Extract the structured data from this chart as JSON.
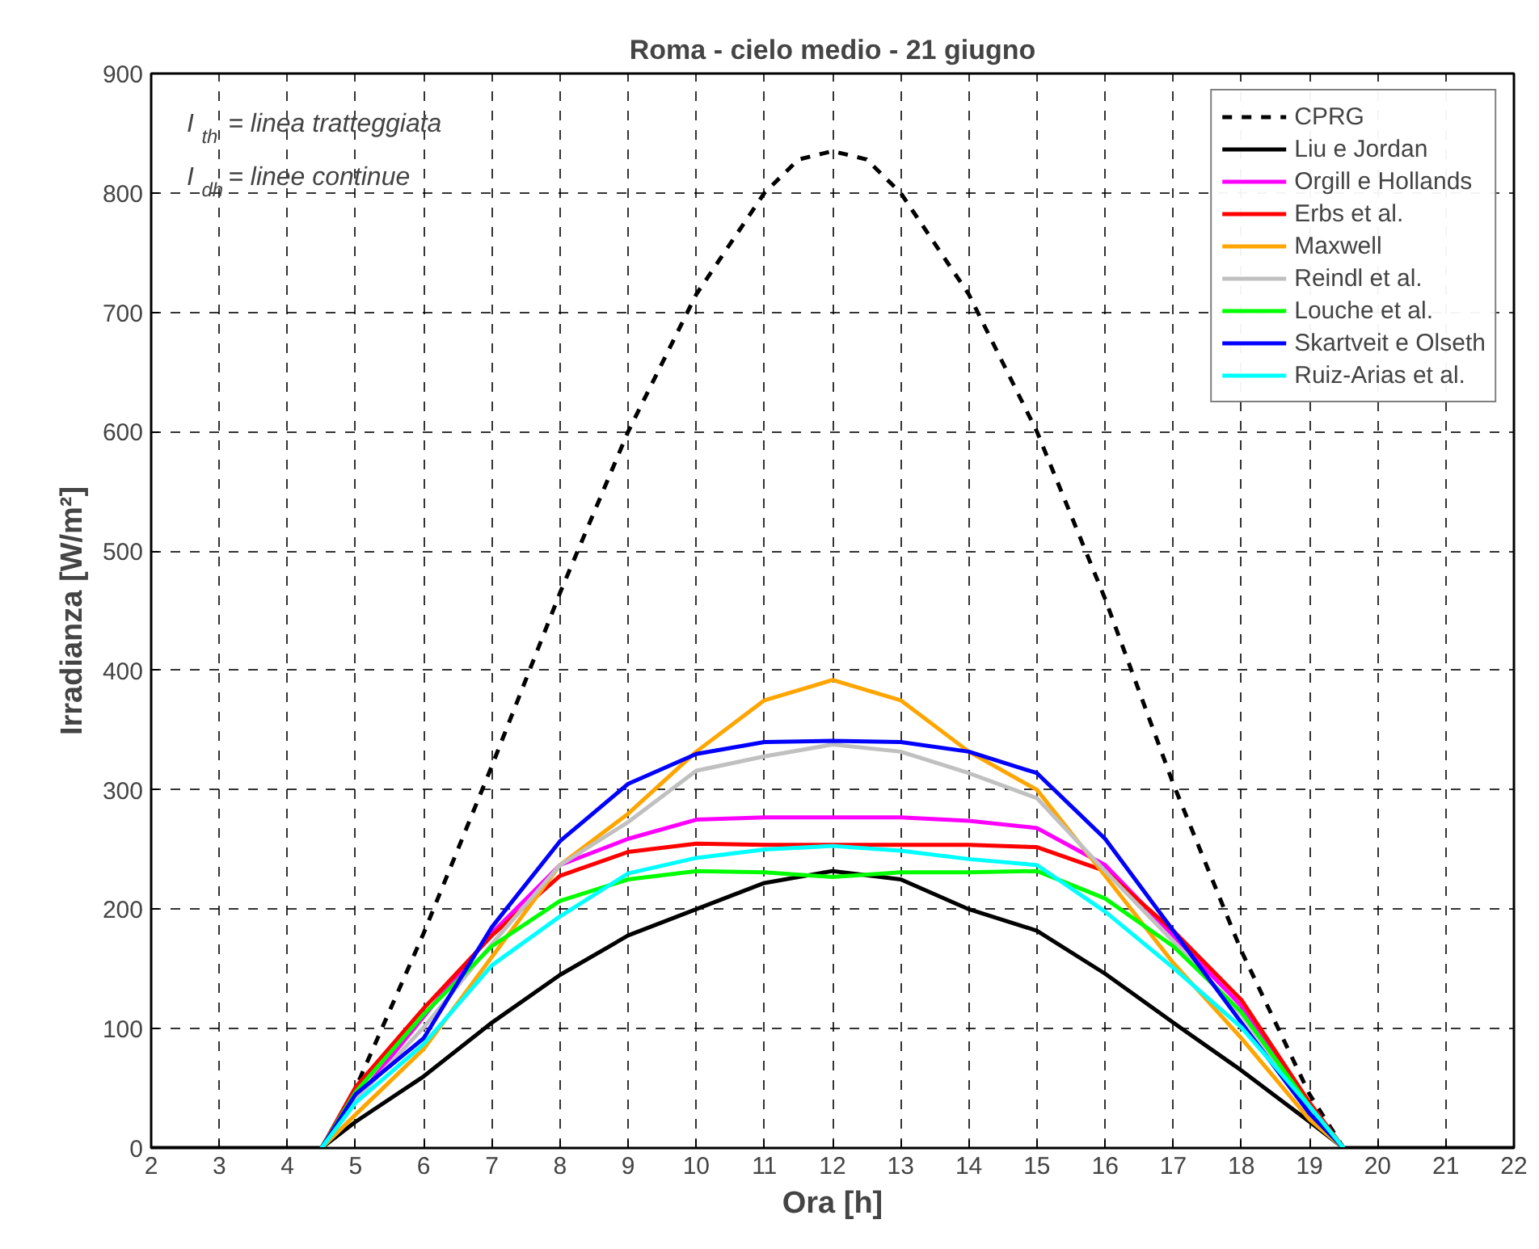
{
  "chart_data": {
    "type": "line",
    "title": "Roma - cielo medio - 21 giugno",
    "xlabel": "Ora [h]",
    "ylabel": "Irradianza [W/m²]",
    "annotations": [
      "I$_{th}$ = linea tratteggiata",
      "I$_{dh}$ = linee continue"
    ],
    "x": [
      4.5,
      5,
      6,
      7,
      8,
      9,
      10,
      11,
      12,
      13,
      14,
      15,
      16,
      17,
      18,
      19,
      19.5
    ],
    "xlim": [
      2,
      22
    ],
    "xticks": [
      2,
      3,
      4,
      5,
      6,
      7,
      8,
      9,
      10,
      11,
      12,
      13,
      14,
      15,
      16,
      17,
      18,
      19,
      20,
      21,
      22
    ],
    "ylim": [
      0,
      900
    ],
    "yticks": [
      0,
      100,
      200,
      300,
      400,
      500,
      600,
      700,
      800,
      900
    ],
    "grid": true,
    "legend": "top right",
    "line_style": "solid",
    "series": [
      {
        "name": "CPRG",
        "color": "#000000",
        "line_style": "dashed",
        "x": [
          4.5,
          5,
          6,
          7,
          8,
          9,
          10,
          11,
          11.5,
          12,
          12.5,
          13,
          14,
          15,
          16,
          17,
          18,
          19,
          19.5
        ],
        "values": [
          0,
          50,
          180,
          320,
          465,
          600,
          715,
          800,
          828,
          835,
          828,
          800,
          715,
          600,
          460,
          305,
          165,
          45,
          0
        ]
      },
      {
        "name": "Liu e Jordan",
        "color": "#000000",
        "x": [
          2,
          4,
          4.5,
          5,
          6,
          7,
          8,
          9,
          10,
          11,
          12,
          13,
          14,
          15,
          16,
          17,
          18,
          19,
          19.5,
          20,
          22
        ],
        "values": [
          0,
          0,
          0,
          22,
          60,
          105,
          145,
          178,
          200,
          222,
          232,
          225,
          200,
          182,
          146,
          105,
          65,
          22,
          0,
          0,
          0
        ]
      },
      {
        "name": "Orgill e Hollands",
        "color": "#ff00ff",
        "values": [
          0,
          40,
          110,
          180,
          237,
          259,
          275,
          277,
          277,
          277,
          274,
          268,
          237,
          178,
          119,
          35,
          0
        ]
      },
      {
        "name": "Erbs et al.",
        "color": "#ff0000",
        "values": [
          0,
          51,
          117,
          178,
          228,
          248,
          255,
          254,
          254,
          254,
          254,
          252,
          232,
          182,
          124,
          38,
          0
        ]
      },
      {
        "name": "Maxwell",
        "color": "#ffa500",
        "values": [
          0,
          28,
          83,
          160,
          237,
          280,
          332,
          375,
          392,
          375,
          332,
          300,
          228,
          155,
          92,
          24,
          0
        ]
      },
      {
        "name": "Reindl et al.",
        "color": "#c0c0c0",
        "values": [
          0,
          40,
          101,
          171,
          237,
          273,
          316,
          328,
          338,
          332,
          314,
          293,
          232,
          173,
          112,
          33,
          0
        ]
      },
      {
        "name": "Louche et al.",
        "color": "#00ff00",
        "values": [
          0,
          47,
          112,
          169,
          207,
          225,
          232,
          231,
          227,
          231,
          231,
          232,
          209,
          169,
          114,
          35,
          0
        ]
      },
      {
        "name": "Skartveit e Olseth",
        "color": "#0000ff",
        "values": [
          0,
          45,
          92,
          185,
          257,
          305,
          330,
          340,
          341,
          340,
          332,
          314,
          259,
          182,
          105,
          29,
          0
        ]
      },
      {
        "name": "Ruiz-Arias et al.",
        "color": "#00ffff",
        "values": [
          0,
          38,
          87,
          153,
          194,
          230,
          243,
          250,
          253,
          249,
          242,
          237,
          198,
          151,
          101,
          35,
          0
        ]
      }
    ]
  }
}
